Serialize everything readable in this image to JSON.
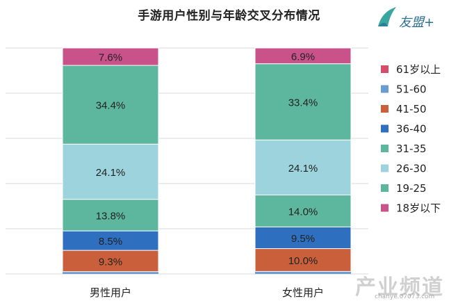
{
  "title": "手游用户性别与年龄交叉分布情况",
  "logo": {
    "text": "友盟+"
  },
  "watermark": {
    "text": "产业频道",
    "url": "chanye.07073.com"
  },
  "chart_data": {
    "type": "bar",
    "stacked": true,
    "normalized": true,
    "categories": [
      "男性用户",
      "女性用户"
    ],
    "ylim": [
      0,
      100
    ],
    "grid": true,
    "legend_position": "right",
    "series": [
      {
        "name": "18岁以下",
        "color": "#C9528A",
        "values": [
          0.4,
          0.4
        ],
        "labels": [
          "",
          ""
        ]
      },
      {
        "name": "19-25",
        "color": "#5DB79E",
        "values": [
          0.4,
          0.4
        ],
        "labels": [
          "",
          ""
        ]
      },
      {
        "name": "26-30",
        "color": "#9DD3DC",
        "values": [
          0.5,
          0.5
        ],
        "labels": [
          "",
          ""
        ]
      },
      {
        "name": "31-35",
        "color": "#5DB79E",
        "values": [
          0.9,
          0.9
        ],
        "labels": [
          "",
          ""
        ]
      },
      {
        "name": "36-40",
        "color": "#2F6FC0",
        "values": [
          0.3,
          0.3
        ],
        "labels": [
          "",
          ""
        ]
      },
      {
        "name": "41-50",
        "color": "#C9603B",
        "values": [
          1.2,
          1.5
        ],
        "labels": [
          "",
          ""
        ]
      },
      {
        "name": "51-60",
        "color": "#6B9BD2",
        "values": [
          0,
          0
        ],
        "labels": [
          "",
          ""
        ]
      },
      {
        "name": "61岁以上",
        "color": "#D24E6B",
        "values": [
          0,
          0
        ],
        "labels": [
          "",
          ""
        ]
      }
    ],
    "segments": [
      {
        "label": "9.3%",
        "color": "#C9603B",
        "values": [
          9.3,
          10.0
        ]
      },
      {
        "label": "8.5%",
        "color": "#2F6FC0",
        "values": [
          8.5,
          9.5
        ]
      },
      {
        "label": "13.8%",
        "color": "#5DB79E",
        "values": [
          13.8,
          14.0
        ]
      },
      {
        "label": "24.1%",
        "color": "#9DD3DC",
        "values": [
          24.1,
          24.1
        ]
      },
      {
        "label": "34.4%",
        "color": "#5DB79E",
        "values": [
          34.4,
          33.4
        ]
      },
      {
        "label": "7.6%",
        "color": "#C9528A",
        "values": [
          7.6,
          6.9
        ]
      }
    ],
    "segment_labels": [
      [
        "9.3%",
        "8.5%",
        "13.8%",
        "24.1%",
        "34.4%",
        "7.6%"
      ],
      [
        "10.0%",
        "9.5%",
        "14.0%",
        "24.1%",
        "33.4%",
        "6.9%"
      ]
    ],
    "bottom_slivers": [
      {
        "color": "#6B9BD2",
        "values": [
          1.0,
          1.1
        ]
      }
    ],
    "legend": [
      {
        "name": "61岁以上",
        "color": "#D24E6B"
      },
      {
        "name": "51-60",
        "color": "#6B9BD2"
      },
      {
        "name": "41-50",
        "color": "#C9603B"
      },
      {
        "name": "36-40",
        "color": "#2F6FC0"
      },
      {
        "name": "31-35",
        "color": "#5DB79E"
      },
      {
        "name": "26-30",
        "color": "#9DD3DC"
      },
      {
        "name": "19-25",
        "color": "#5DB79E"
      },
      {
        "name": "18岁以下",
        "color": "#C9528A"
      }
    ]
  }
}
